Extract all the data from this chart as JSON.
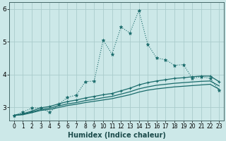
{
  "xlabel": "Humidex (Indice chaleur)",
  "background_color": "#cce8e8",
  "grid_color": "#aacccc",
  "line_color": "#1a6b6b",
  "xlim": [
    -0.5,
    23.5
  ],
  "ylim": [
    2.6,
    6.2
  ],
  "yticks": [
    3,
    4,
    5,
    6
  ],
  "xticks": [
    0,
    1,
    2,
    3,
    4,
    5,
    6,
    7,
    8,
    9,
    10,
    11,
    12,
    13,
    14,
    15,
    16,
    17,
    18,
    19,
    20,
    21,
    22,
    23
  ],
  "x": [
    0,
    1,
    2,
    3,
    4,
    5,
    6,
    7,
    8,
    9,
    10,
    11,
    12,
    13,
    14,
    15,
    16,
    17,
    18,
    19,
    20,
    21,
    22,
    23
  ],
  "line1": [
    2.75,
    2.85,
    2.97,
    2.98,
    2.84,
    3.08,
    3.3,
    3.37,
    3.78,
    3.8,
    5.05,
    4.62,
    5.45,
    5.27,
    5.95,
    4.92,
    4.5,
    4.45,
    4.28,
    4.3,
    3.88,
    3.93,
    3.88,
    3.52
  ],
  "line2": [
    2.75,
    2.8,
    2.88,
    2.98,
    3.02,
    3.1,
    3.17,
    3.22,
    3.28,
    3.33,
    3.38,
    3.42,
    3.5,
    3.58,
    3.68,
    3.75,
    3.8,
    3.84,
    3.88,
    3.9,
    3.93,
    3.95,
    3.95,
    3.78
  ],
  "line3": [
    2.75,
    2.78,
    2.85,
    2.93,
    2.97,
    3.04,
    3.1,
    3.14,
    3.2,
    3.24,
    3.29,
    3.33,
    3.4,
    3.47,
    3.56,
    3.62,
    3.67,
    3.7,
    3.73,
    3.75,
    3.77,
    3.79,
    3.8,
    3.65
  ],
  "line4": [
    2.75,
    2.77,
    2.83,
    2.9,
    2.93,
    2.99,
    3.05,
    3.09,
    3.14,
    3.18,
    3.22,
    3.26,
    3.32,
    3.38,
    3.46,
    3.52,
    3.56,
    3.59,
    3.62,
    3.64,
    3.66,
    3.68,
    3.7,
    3.55
  ]
}
